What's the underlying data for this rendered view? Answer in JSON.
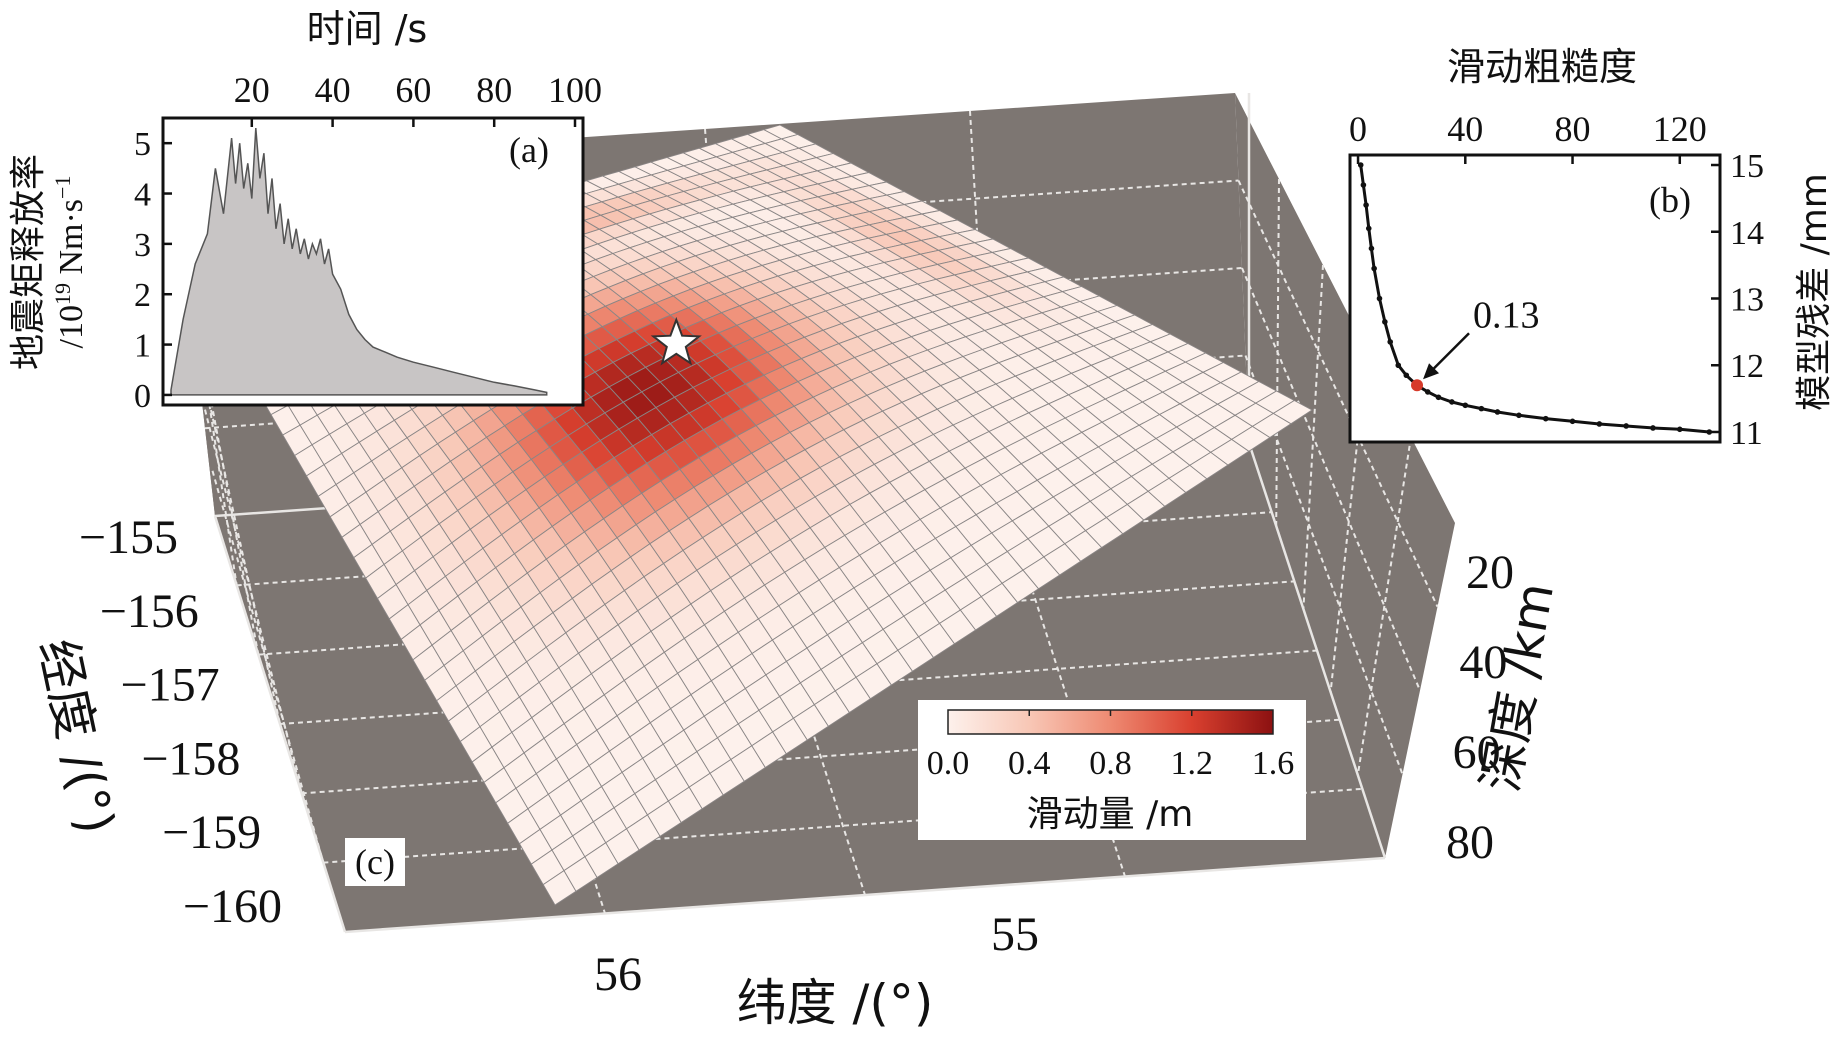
{
  "chart_data": [
    {
      "panel": "(a)",
      "type": "area",
      "xlabel": "时间 /s",
      "ylabel_line1": "地震矩释放率",
      "ylabel_line2": "/10",
      "ylabel_exp": "19",
      "ylabel_unit": " Nm·s",
      "ylabel_unit_exp": "−1",
      "xticks": [
        20,
        40,
        60,
        80,
        100
      ],
      "yticks": [
        0,
        1,
        2,
        3,
        4,
        5
      ],
      "xlim": [
        0,
        100
      ],
      "ylim": [
        -0.2,
        5.5
      ],
      "x": [
        0,
        3,
        6,
        9,
        11,
        13,
        15,
        16,
        17,
        18,
        19,
        20,
        21,
        22,
        23,
        24,
        25,
        26,
        27,
        28,
        29,
        30,
        31,
        32,
        33,
        34,
        35,
        36,
        37,
        38,
        39,
        40,
        42,
        44,
        46,
        48,
        50,
        53,
        56,
        60,
        65,
        70,
        75,
        80,
        85,
        90,
        93
      ],
      "y": [
        0.1,
        1.5,
        2.6,
        3.2,
        4.5,
        3.6,
        5.1,
        4.2,
        5.0,
        4.1,
        4.6,
        3.9,
        5.3,
        4.3,
        4.8,
        3.6,
        4.3,
        3.3,
        3.8,
        3.0,
        3.5,
        2.9,
        3.3,
        2.8,
        3.1,
        2.7,
        3.0,
        2.8,
        3.1,
        2.6,
        2.9,
        2.4,
        2.1,
        1.6,
        1.3,
        1.1,
        0.95,
        0.85,
        0.75,
        0.65,
        0.55,
        0.45,
        0.35,
        0.25,
        0.18,
        0.1,
        0.05
      ]
    },
    {
      "panel": "(b)",
      "type": "line",
      "xlabel": "滑动粗糙度",
      "ylabel": "模型残差 /mm",
      "xticks": [
        0,
        40,
        80,
        120
      ],
      "yticks": [
        11,
        12,
        13,
        14,
        15
      ],
      "xlim": [
        -3,
        135
      ],
      "ylim": [
        10.85,
        15.15
      ],
      "x": [
        1,
        2,
        3,
        4,
        5,
        6,
        8,
        10,
        12,
        15,
        18,
        22,
        26,
        30,
        35,
        40,
        46,
        52,
        60,
        70,
        80,
        90,
        100,
        110,
        120,
        131
      ],
      "y": [
        15.0,
        14.7,
        14.4,
        14.05,
        13.75,
        13.45,
        13.0,
        12.65,
        12.35,
        12.0,
        11.85,
        11.7,
        11.6,
        11.52,
        11.45,
        11.4,
        11.35,
        11.3,
        11.25,
        11.2,
        11.16,
        11.12,
        11.09,
        11.06,
        11.04,
        11.0
      ],
      "highlight_x": 22,
      "highlight_y": 11.7,
      "annotation": "0.13",
      "highlight_color": "#d63a2a"
    },
    {
      "panel": "(c)",
      "type": "surface",
      "xlabel": "纬度 /(°)",
      "ylabel": "经度 /(°)",
      "zlabel": "深度 /km",
      "xticks": [
        "56",
        "55"
      ],
      "yticks": [
        "−155",
        "−156",
        "−157",
        "−158",
        "−159",
        "−160"
      ],
      "zticks": [
        "20",
        "40",
        "60",
        "80"
      ],
      "colorbar": {
        "label": "滑动量 /m",
        "ticks": [
          "0.0",
          "0.4",
          "0.8",
          "1.2",
          "1.6"
        ],
        "min": 0.0,
        "max": 1.6,
        "colors": [
          "#fdf1ec",
          "#f8c7b6",
          "#ee8a72",
          "#d9402f",
          "#8c1111"
        ]
      },
      "hypocenter_marker": "star",
      "box_color": "#7d7672"
    }
  ]
}
